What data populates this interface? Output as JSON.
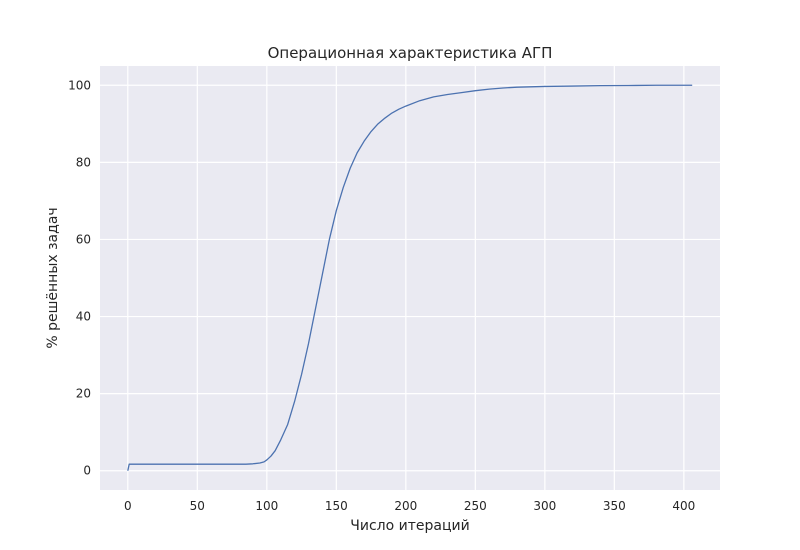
{
  "chart_data": {
    "type": "line",
    "title": "Операционная характеристика АГП",
    "xlabel": "Число итераций",
    "ylabel": "% решённых задач",
    "xlim": [
      -20,
      426
    ],
    "ylim": [
      -5,
      105
    ],
    "xticks": [
      0,
      50,
      100,
      150,
      200,
      250,
      300,
      350,
      400
    ],
    "yticks": [
      0,
      20,
      40,
      60,
      80,
      100
    ],
    "grid": true,
    "colors": {
      "background": "#eaeaf2",
      "grid": "#ffffff",
      "line": "#4c72b0"
    },
    "series": [
      {
        "x": [
          0,
          1,
          5,
          20,
          40,
          60,
          80,
          85,
          90,
          95,
          98,
          100,
          103,
          106,
          110,
          115,
          120,
          125,
          130,
          135,
          140,
          145,
          150,
          155,
          160,
          165,
          170,
          175,
          180,
          185,
          190,
          195,
          200,
          210,
          220,
          230,
          240,
          250,
          260,
          270,
          280,
          300,
          320,
          340,
          360,
          380,
          406
        ],
        "y": [
          0,
          1.7,
          1.7,
          1.7,
          1.7,
          1.7,
          1.7,
          1.7,
          1.8,
          2.0,
          2.3,
          2.8,
          3.8,
          5.2,
          8,
          12,
          18,
          25,
          33,
          42,
          51,
          60,
          67.5,
          73.5,
          78.5,
          82.5,
          85.5,
          88,
          90,
          91.5,
          92.8,
          93.8,
          94.6,
          96,
          97,
          97.6,
          98.1,
          98.6,
          99,
          99.3,
          99.5,
          99.7,
          99.8,
          99.9,
          99.95,
          100,
          100
        ]
      }
    ]
  }
}
